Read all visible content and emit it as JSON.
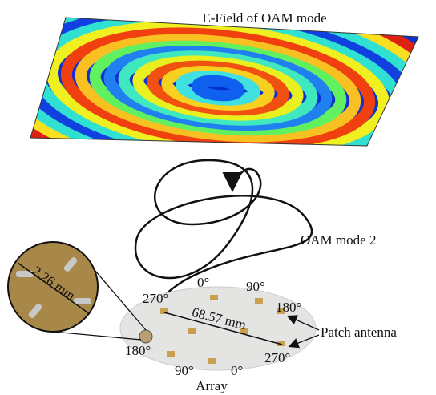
{
  "title": "E-Field of OAM mode",
  "mode_label": "OAM mode 2",
  "inset": {
    "dimension": "2.26 mm"
  },
  "array": {
    "label": "Array",
    "dimension": "68.57 mm",
    "angles": [
      "270°",
      "0°",
      "90°",
      "180°",
      "180°",
      "270°",
      "90°",
      "0°"
    ]
  },
  "callout": "Patch antenna"
}
